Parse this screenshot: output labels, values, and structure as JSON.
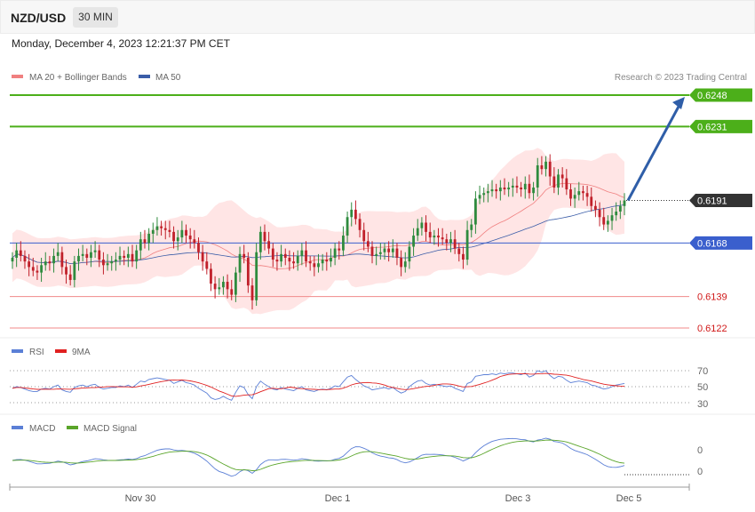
{
  "header": {
    "symbol": "NZD/USD",
    "timeframe": "30 MIN",
    "datetime": "Monday, December 4, 2023 12:21:37 PM CET"
  },
  "credit": "Research © 2023 Trading Central",
  "colors": {
    "target": "#4caf1a",
    "support": "#3a5fcd",
    "price_tag": "#333333",
    "bb_fill": "#ffdcdc",
    "ma20": "#f08080",
    "ma50": "#3b5da8",
    "up": "#2e8b3e",
    "down": "#c0202a",
    "rsi": "#5b7fd6",
    "rsi_ma": "#e02020",
    "macd": "#5b7fd6",
    "macd_signal": "#5aa52a",
    "arrow": "#2f5ea8"
  },
  "chart_data": [
    {
      "type": "candlestick",
      "title": "NZD/USD 30 MIN",
      "legend": [
        {
          "label": "MA 20 + Bollinger Bands",
          "color": "#f08080"
        },
        {
          "label": "MA 50",
          "color": "#3b5da8"
        }
      ],
      "ylim": [
        0.6114,
        0.6262
      ],
      "x_tick_labels": [
        "Nov 30",
        "Dec 1",
        "Dec 3",
        "Dec 5"
      ],
      "levels": [
        {
          "value": "0.6248",
          "kind": "target"
        },
        {
          "value": "0.6231",
          "kind": "target"
        },
        {
          "value": "0.6191",
          "kind": "price"
        },
        {
          "value": "0.6168",
          "kind": "support"
        },
        {
          "value": "0.6139",
          "kind": "support2"
        },
        {
          "value": "0.6122",
          "kind": "support2"
        }
      ],
      "close": [
        0.616,
        0.6164,
        0.6161,
        0.6158,
        0.6155,
        0.6153,
        0.6152,
        0.6156,
        0.6158,
        0.6157,
        0.6161,
        0.6163,
        0.6155,
        0.6151,
        0.6148,
        0.6158,
        0.6161,
        0.6162,
        0.616,
        0.6163,
        0.6164,
        0.6159,
        0.6156,
        0.6157,
        0.6158,
        0.6159,
        0.6161,
        0.616,
        0.6162,
        0.6158,
        0.6164,
        0.617,
        0.6168,
        0.6173,
        0.6175,
        0.6177,
        0.6176,
        0.6175,
        0.6174,
        0.6169,
        0.6171,
        0.6175,
        0.6172,
        0.617,
        0.6168,
        0.6163,
        0.6158,
        0.6154,
        0.6146,
        0.6143,
        0.6144,
        0.6147,
        0.6143,
        0.614,
        0.6152,
        0.6162,
        0.616,
        0.6145,
        0.6137,
        0.6163,
        0.6174,
        0.6169,
        0.6165,
        0.6159,
        0.6158,
        0.6162,
        0.616,
        0.6158,
        0.6157,
        0.6161,
        0.6164,
        0.6158,
        0.6157,
        0.6155,
        0.6157,
        0.6159,
        0.6158,
        0.616,
        0.6165,
        0.6164,
        0.6172,
        0.6182,
        0.6186,
        0.6181,
        0.6175,
        0.6169,
        0.6166,
        0.6161,
        0.6162,
        0.6163,
        0.6165,
        0.6163,
        0.6165,
        0.616,
        0.6155,
        0.6158,
        0.6166,
        0.6172,
        0.6176,
        0.6179,
        0.6174,
        0.6171,
        0.6172,
        0.6171,
        0.617,
        0.6168,
        0.617,
        0.6165,
        0.6162,
        0.6159,
        0.6175,
        0.6178,
        0.6192,
        0.6194,
        0.6195,
        0.6196,
        0.6197,
        0.6196,
        0.6198,
        0.6197,
        0.6198,
        0.6199,
        0.6198,
        0.6197,
        0.62,
        0.6195,
        0.6198,
        0.621,
        0.6208,
        0.6212,
        0.6204,
        0.6198,
        0.6205,
        0.6203,
        0.6197,
        0.6192,
        0.6194,
        0.6196,
        0.6195,
        0.6193,
        0.6188,
        0.6186,
        0.6182,
        0.6178,
        0.618,
        0.6183,
        0.6185,
        0.6188,
        0.6191
      ],
      "rsi": [
        48,
        50,
        49,
        47,
        45,
        44,
        44,
        47,
        48,
        47,
        50,
        52,
        46,
        44,
        43,
        49,
        51,
        52,
        50,
        52,
        53,
        49,
        47,
        48,
        49,
        49,
        51,
        50,
        52,
        49,
        53,
        57,
        56,
        59,
        60,
        61,
        60,
        59,
        58,
        54,
        56,
        58,
        55,
        54,
        52,
        48,
        45,
        42,
        36,
        34,
        35,
        38,
        35,
        33,
        43,
        51,
        49,
        40,
        35,
        50,
        57,
        53,
        50,
        47,
        46,
        49,
        47,
        46,
        45,
        48,
        50,
        46,
        45,
        44,
        46,
        47,
        46,
        48,
        51,
        50,
        56,
        62,
        64,
        59,
        55,
        51,
        49,
        46,
        47,
        48,
        49,
        47,
        49,
        45,
        42,
        44,
        50,
        54,
        57,
        58,
        54,
        52,
        53,
        52,
        51,
        50,
        51,
        48,
        46,
        44,
        54,
        56,
        63,
        64,
        65,
        65,
        66,
        65,
        67,
        66,
        67,
        67,
        66,
        65,
        67,
        62,
        64,
        70,
        68,
        70,
        64,
        60,
        63,
        62,
        58,
        55,
        56,
        57,
        56,
        55,
        52,
        51,
        49,
        47,
        48,
        50,
        52,
        53,
        54
      ]
    }
  ],
  "rsi_panel": {
    "legend": [
      {
        "label": "RSI",
        "color": "#5b7fd6"
      },
      {
        "label": "9MA",
        "color": "#e02020"
      }
    ],
    "ticks": [
      "70",
      "50",
      "30"
    ]
  },
  "macd_panel": {
    "legend": [
      {
        "label": "MACD",
        "color": "#5b7fd6"
      },
      {
        "label": "MACD Signal",
        "color": "#5aa52a"
      }
    ],
    "ticks": [
      "0",
      "0"
    ]
  }
}
